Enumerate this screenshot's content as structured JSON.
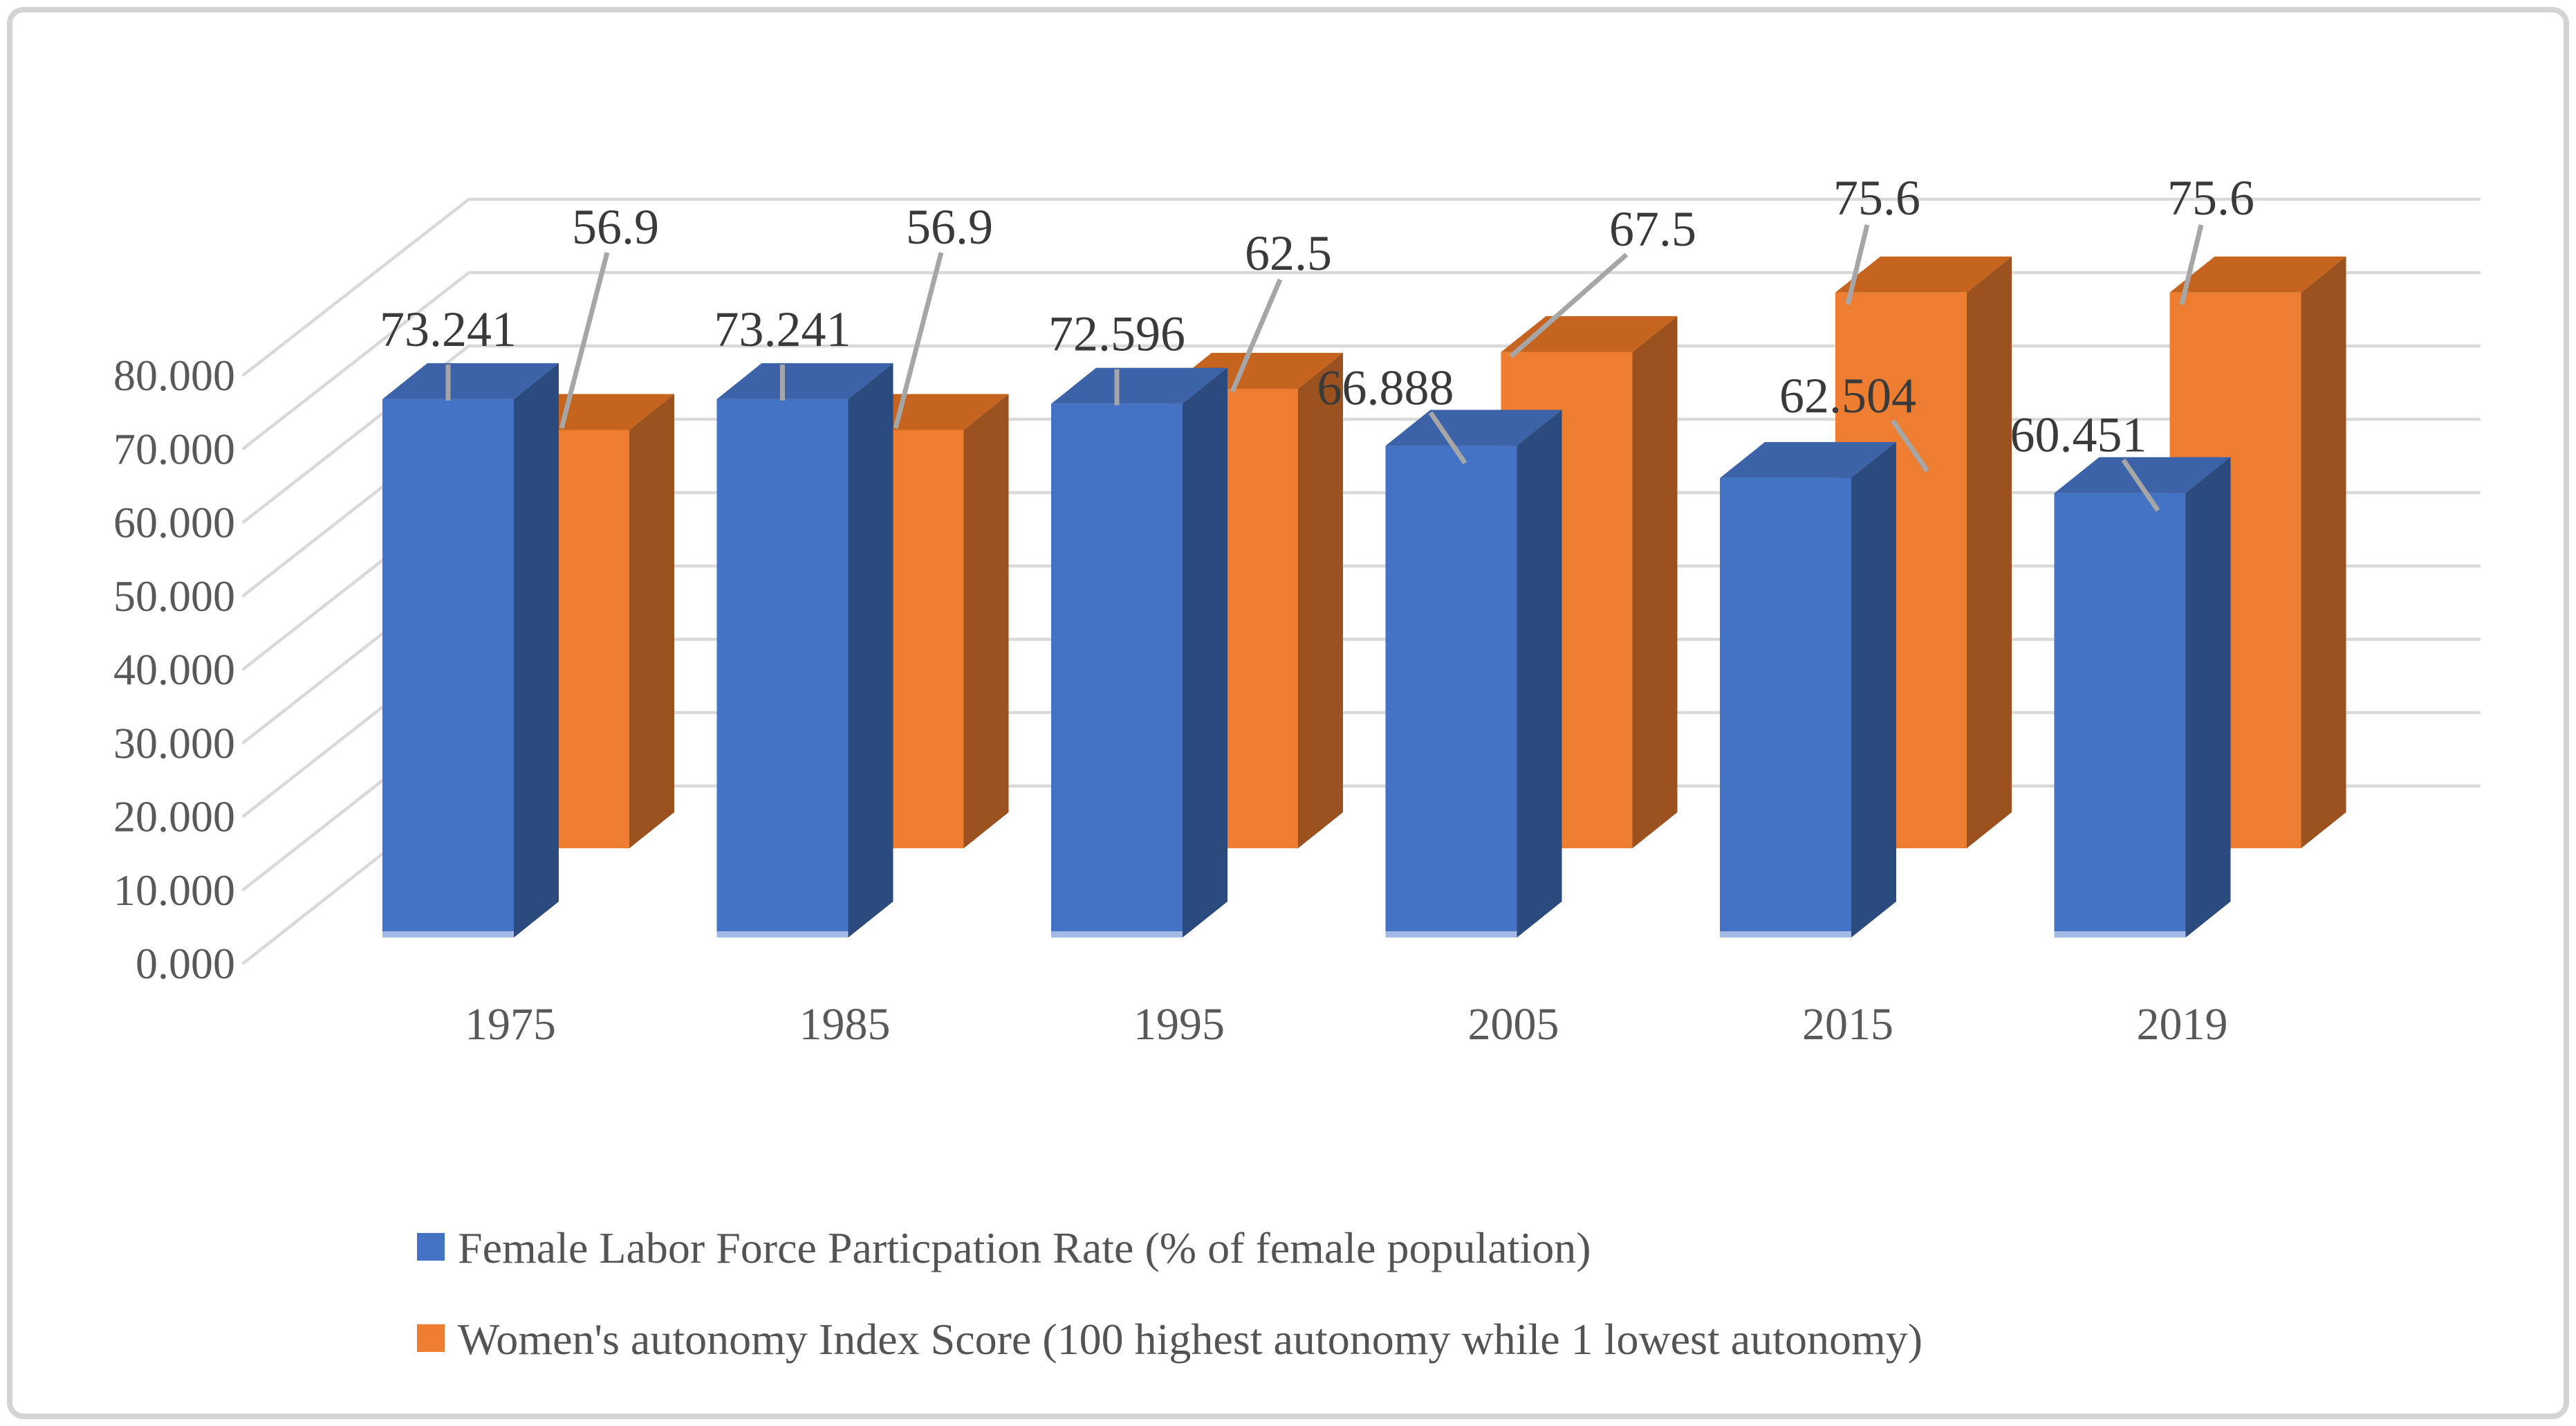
{
  "chart_data": {
    "type": "bar",
    "subtype": "3d-clustered-column",
    "title": "",
    "categories": [
      "1975",
      "1985",
      "1995",
      "2005",
      "2015",
      "2019"
    ],
    "series": [
      {
        "name": "Female Labor Force Particpation Rate (% of female population)",
        "color": "#4472C4",
        "values": [
          73.241,
          73.241,
          72.596,
          66.888,
          62.504,
          60.451
        ],
        "labels": [
          "73.241",
          "73.241",
          "72.596",
          "66.888",
          "62.504",
          "60.451"
        ]
      },
      {
        "name": "Women's autonomy Index Score (100 highest autonomy while 1 lowest autonomy)",
        "color": "#ED7D31",
        "values": [
          56.9,
          56.9,
          62.5,
          67.5,
          75.6,
          75.6
        ],
        "labels": [
          "56.9",
          "56.9",
          "62.5",
          "67.5",
          "75.6",
          "75.6"
        ]
      }
    ],
    "y_axis": {
      "min": 0,
      "max": 80,
      "step": 10,
      "tick_labels": [
        "0.000",
        "10.000",
        "20.000",
        "30.000",
        "40.000",
        "50.000",
        "60.000",
        "70.000",
        "80.000"
      ]
    },
    "x_axis": {
      "tick_labels": [
        "1975",
        "1985",
        "1995",
        "2005",
        "2015",
        "2019"
      ]
    },
    "legend_position": "bottom",
    "grid": true
  },
  "colors": {
    "blue_front": "#4472C4",
    "blue_side": "#2B4A7D",
    "blue_top": "#3C62A7",
    "blue_base_strip": "#A3BBE4",
    "orange_front": "#ED7D31",
    "orange_side": "#9C521E",
    "orange_top": "#C4641E",
    "gridline": "#D9D9D9",
    "leader": "#A6A6A6",
    "frame_border": "#D4D4D4",
    "label_text": "#3A3A3A",
    "axis_text": "#595959"
  },
  "legend": {
    "items": [
      {
        "label": "Female Labor Force Particpation Rate (% of female population)",
        "color": "#4472C4"
      },
      {
        "label": "Women's autonomy Index Score (100 highest autonomy while 1 lowest autonomy)",
        "color": "#ED7D31"
      }
    ]
  }
}
